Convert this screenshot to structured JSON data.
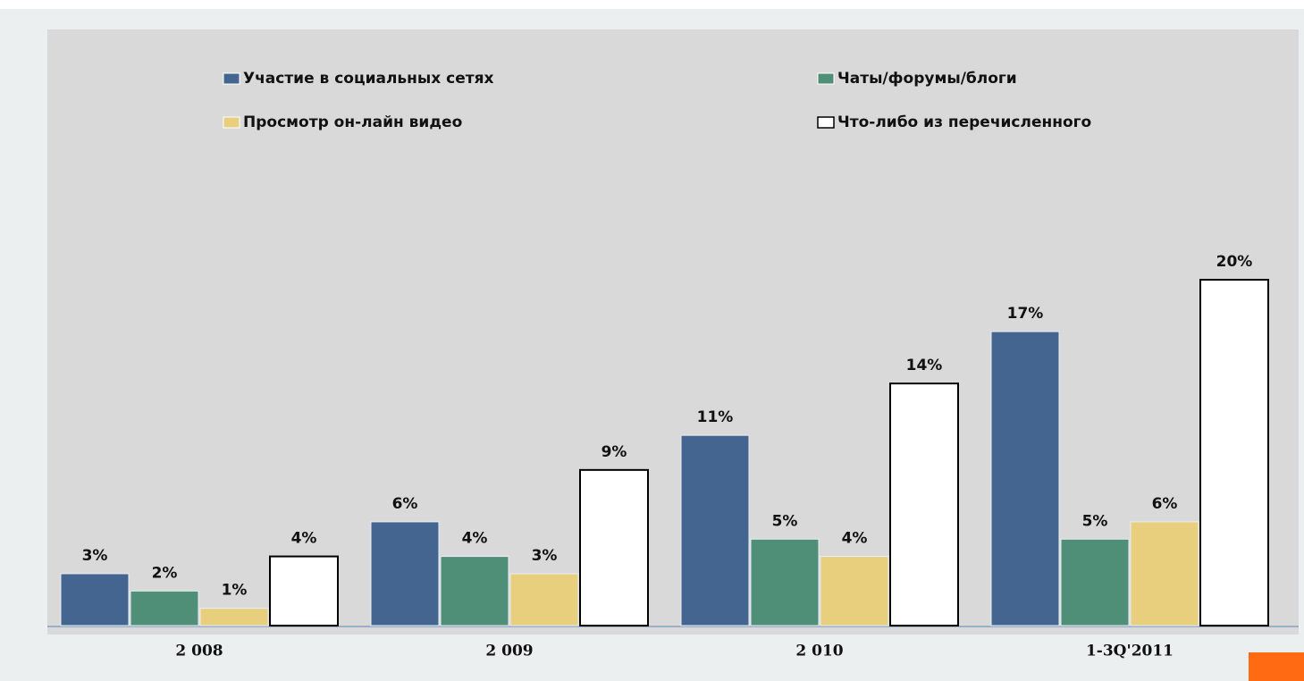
{
  "chart_data": {
    "type": "bar",
    "categories": [
      "2 008",
      "2 009",
      "2 010",
      "1-3Q'2011"
    ],
    "series": [
      {
        "name": "Участие в социальных сетях",
        "color": "#436590",
        "values": [
          3,
          6,
          11,
          17
        ],
        "value_labels": [
          "3%",
          "6%",
          "11%",
          "17%"
        ]
      },
      {
        "name": "Чаты/форумы/блоги",
        "color": "#4f8f78",
        "values": [
          2,
          4,
          5,
          5
        ],
        "value_labels": [
          "2%",
          "4%",
          "5%",
          "5%"
        ]
      },
      {
        "name": "Просмотр он-лайн видео",
        "color": "#e8cf7e",
        "values": [
          1,
          3,
          4,
          6
        ],
        "value_labels": [
          "1%",
          "3%",
          "4%",
          "6%"
        ]
      },
      {
        "name": "Что-либо из перечисленного",
        "color": "#ffffff",
        "values": [
          4,
          9,
          14,
          20
        ],
        "value_labels": [
          "4%",
          "9%",
          "14%",
          "20%"
        ]
      }
    ]
  }
}
